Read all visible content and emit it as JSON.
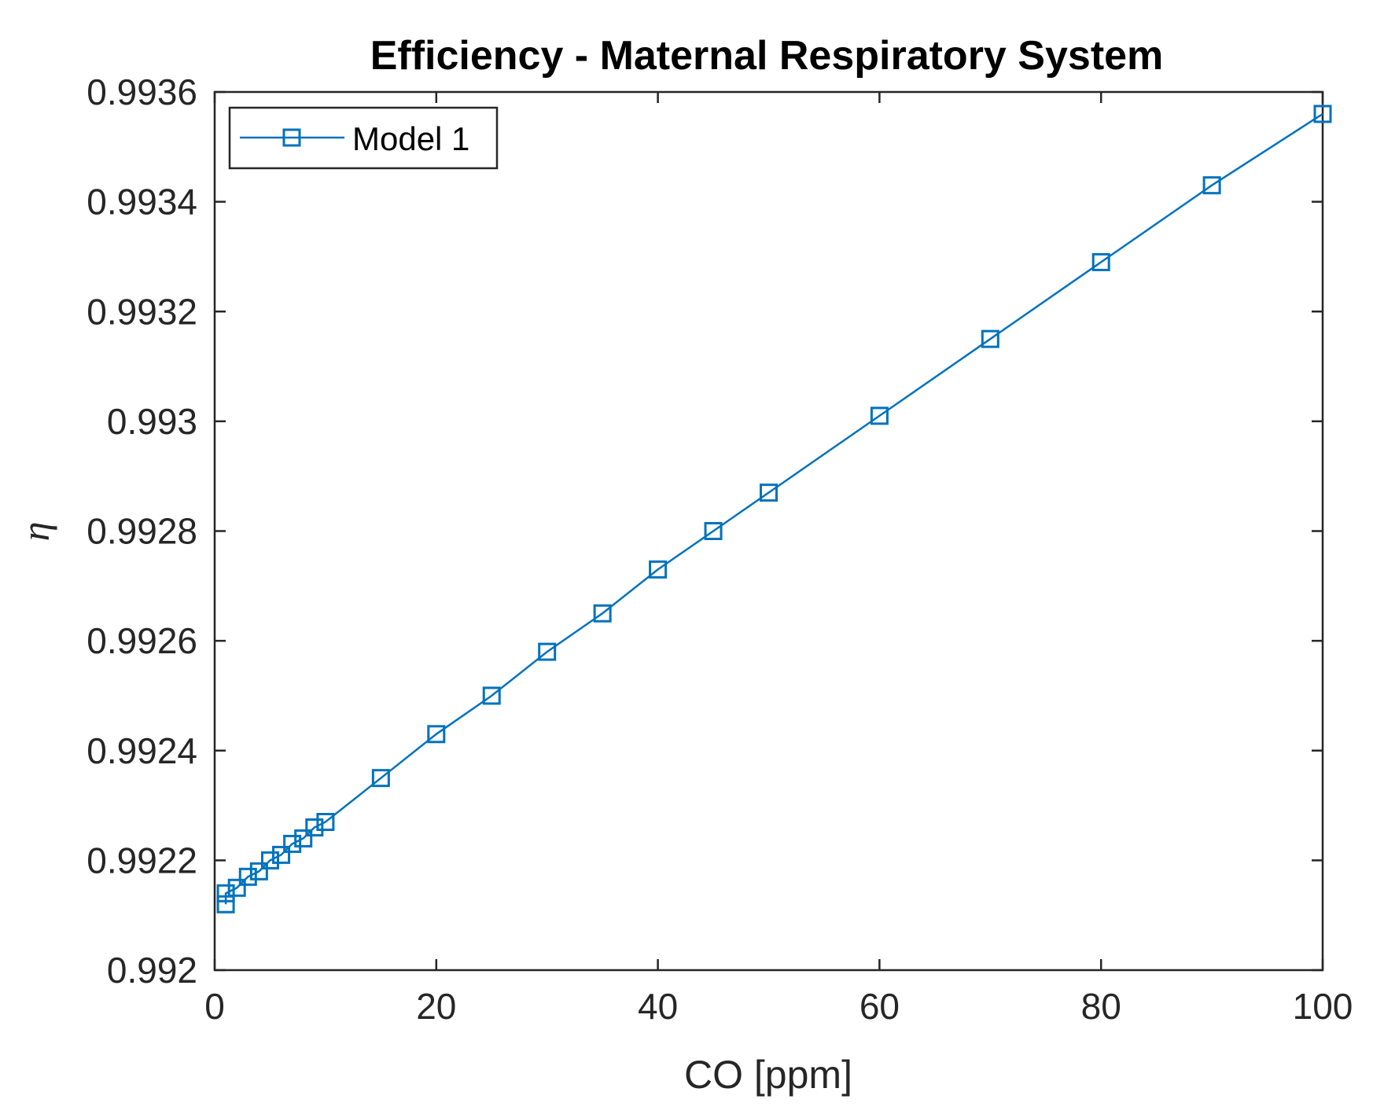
{
  "chart_data": {
    "type": "line",
    "title": "Efficiency - Maternal Respiratory System",
    "xlabel": "CO [ppm]",
    "ylabel": "η",
    "xlim": [
      0,
      100
    ],
    "ylim": [
      0.992,
      0.9936
    ],
    "x_ticks": [
      0,
      20,
      40,
      60,
      80,
      100
    ],
    "x_tick_labels": [
      "0",
      "20",
      "40",
      "60",
      "80",
      "100"
    ],
    "y_ticks": [
      0.992,
      0.9922,
      0.9924,
      0.9926,
      0.9928,
      0.993,
      0.9932,
      0.9934,
      0.9936
    ],
    "y_tick_labels": [
      "0.992",
      "0.9922",
      "0.9924",
      "0.9926",
      "0.9928",
      "0.993",
      "0.9932",
      "0.9934",
      "0.9936"
    ],
    "grid": false,
    "legend": {
      "position": "top-left"
    },
    "series": [
      {
        "name": "Model 1",
        "color": "#0072BD",
        "marker": "square",
        "x": [
          1,
          1,
          2,
          3,
          4,
          5,
          6,
          7,
          8,
          9,
          10,
          15,
          20,
          25,
          30,
          35,
          40,
          45,
          50,
          60,
          70,
          80,
          90,
          100
        ],
        "y": [
          0.99212,
          0.99214,
          0.99215,
          0.99217,
          0.99218,
          0.9922,
          0.99221,
          0.99223,
          0.99224,
          0.99226,
          0.99227,
          0.99235,
          0.99243,
          0.9925,
          0.99258,
          0.99265,
          0.99273,
          0.9928,
          0.99287,
          0.99301,
          0.99315,
          0.99329,
          0.99343,
          0.99356
        ]
      }
    ]
  }
}
